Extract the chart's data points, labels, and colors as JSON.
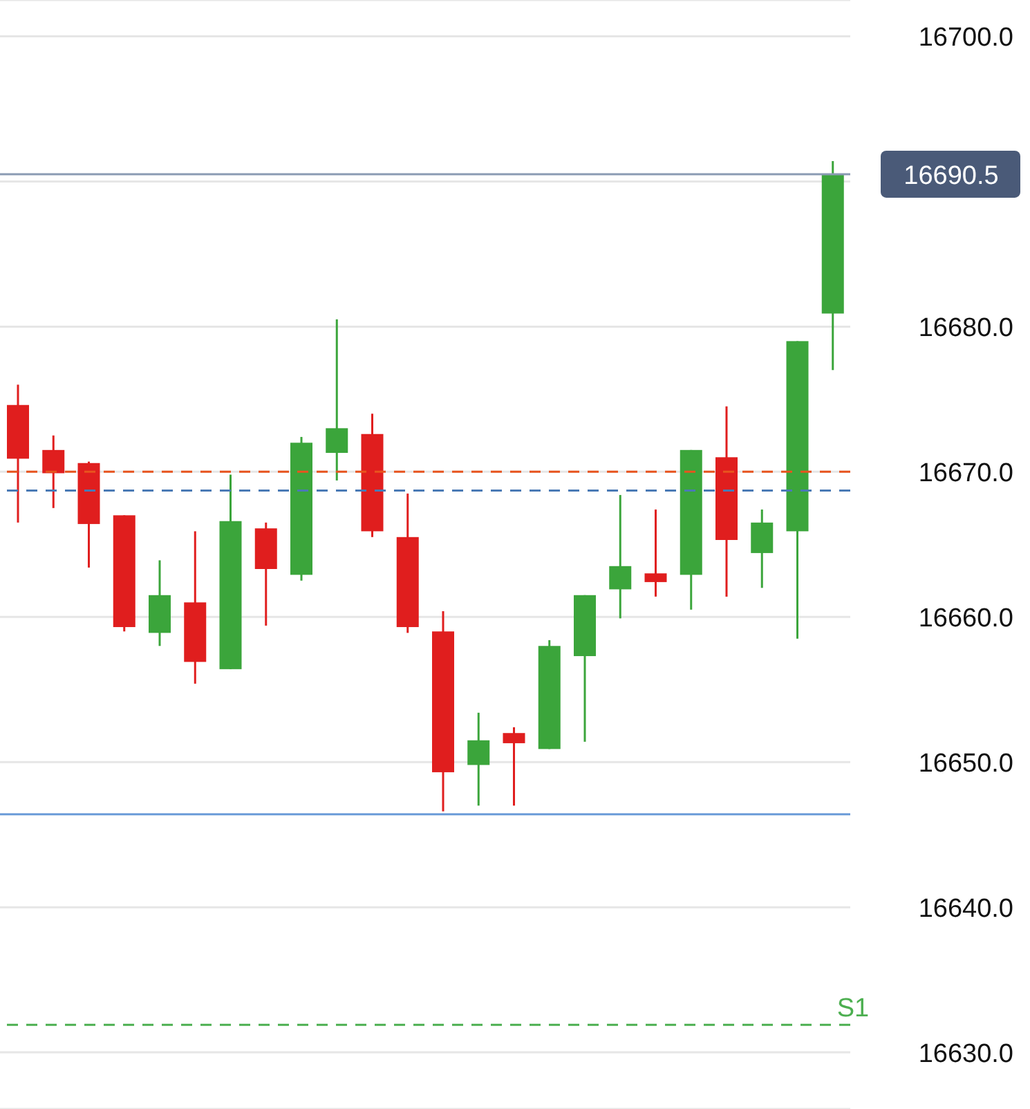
{
  "chart_data": {
    "type": "candlestick",
    "categories": [
      null,
      null,
      null,
      null,
      null,
      null,
      null,
      null,
      null,
      null,
      null,
      null,
      null,
      null,
      null,
      null,
      null,
      null,
      null,
      null,
      null,
      null,
      null,
      null
    ],
    "ohlc": [
      [
        16674.6,
        16676.0,
        16666.5,
        16670.9
      ],
      [
        16671.5,
        16672.5,
        16667.5,
        16669.9
      ],
      [
        16670.6,
        16670.7,
        16663.4,
        16666.4
      ],
      [
        16667.0,
        16667.0,
        16659.0,
        16659.3
      ],
      [
        16658.9,
        16663.9,
        16658.0,
        16661.5
      ],
      [
        16661.0,
        16665.9,
        16655.4,
        16656.9
      ],
      [
        16656.4,
        16669.8,
        16656.4,
        16666.6
      ],
      [
        16666.1,
        16666.5,
        16659.4,
        16663.3
      ],
      [
        16662.9,
        16672.4,
        16662.5,
        16672.0
      ],
      [
        16671.3,
        16680.5,
        16669.4,
        16673.0
      ],
      [
        16672.6,
        16674.0,
        16665.5,
        16665.9
      ],
      [
        16665.5,
        16668.5,
        16658.9,
        16659.3
      ],
      [
        16659.0,
        16660.4,
        16646.6,
        16649.3
      ],
      [
        16649.8,
        16653.4,
        16647.0,
        16651.5
      ],
      [
        16652.0,
        16652.4,
        16647.0,
        16651.3
      ],
      [
        16650.9,
        16658.4,
        16650.9,
        16658.0
      ],
      [
        16657.3,
        16661.5,
        16651.4,
        16661.5
      ],
      [
        16661.9,
        16668.4,
        16659.9,
        16663.5
      ],
      [
        16663.0,
        16667.4,
        16661.4,
        16662.4
      ],
      [
        16662.9,
        16671.5,
        16660.5,
        16671.5
      ],
      [
        16671.0,
        16674.5,
        16661.4,
        16665.3
      ],
      [
        16664.4,
        16667.4,
        16662.0,
        16666.5
      ],
      [
        16665.9,
        16679.0,
        16658.5,
        16679.0
      ],
      [
        16680.9,
        16691.4,
        16677.0,
        16690.5
      ]
    ],
    "colors": [
      "#e01e1e",
      "#e01e1e",
      "#e01e1e",
      "#e01e1e",
      "#3ba53b",
      "#e01e1e",
      "#3ba53b",
      "#e01e1e",
      "#3ba53b",
      "#3ba53b",
      "#e01e1e",
      "#e01e1e",
      "#e01e1e",
      "#3ba53b",
      "#e01e1e",
      "#3ba53b",
      "#3ba53b",
      "#3ba53b",
      "#e01e1e",
      "#3ba53b",
      "#e01e1e",
      "#3ba53b",
      "#3ba53b",
      "#3ba53b"
    ],
    "ylim": [
      16626.1,
      16702.5
    ],
    "yticks": [
      {
        "value": 16630,
        "label": "16630.0"
      },
      {
        "value": 16640,
        "label": "16640.0"
      },
      {
        "value": 16650,
        "label": "16650.0"
      },
      {
        "value": 16660,
        "label": "16660.0"
      },
      {
        "value": 16670,
        "label": "16670.0"
      },
      {
        "value": 16680,
        "label": "16680.0"
      },
      {
        "value": 16690,
        "label": null
      },
      {
        "value": 16700,
        "label": "16700.0"
      }
    ],
    "grid": "y",
    "ref_lines": [
      {
        "axis": "y",
        "value": 16690.5,
        "label": "16690.5",
        "color": "#8a9bb3",
        "line_style": "solid"
      },
      {
        "axis": "y",
        "value": 16670.0,
        "color": "#e8541e",
        "line_style": "dashed"
      },
      {
        "axis": "y",
        "value": 16668.7,
        "color": "#4a7ab5",
        "line_style": "dashed"
      },
      {
        "axis": "y",
        "value": 16646.4,
        "color": "#6a9bd8",
        "line_style": "solid"
      },
      {
        "axis": "y",
        "value": 16631.9,
        "label": "S1",
        "color": "#4caf50",
        "line_style": "dashed"
      }
    ]
  }
}
